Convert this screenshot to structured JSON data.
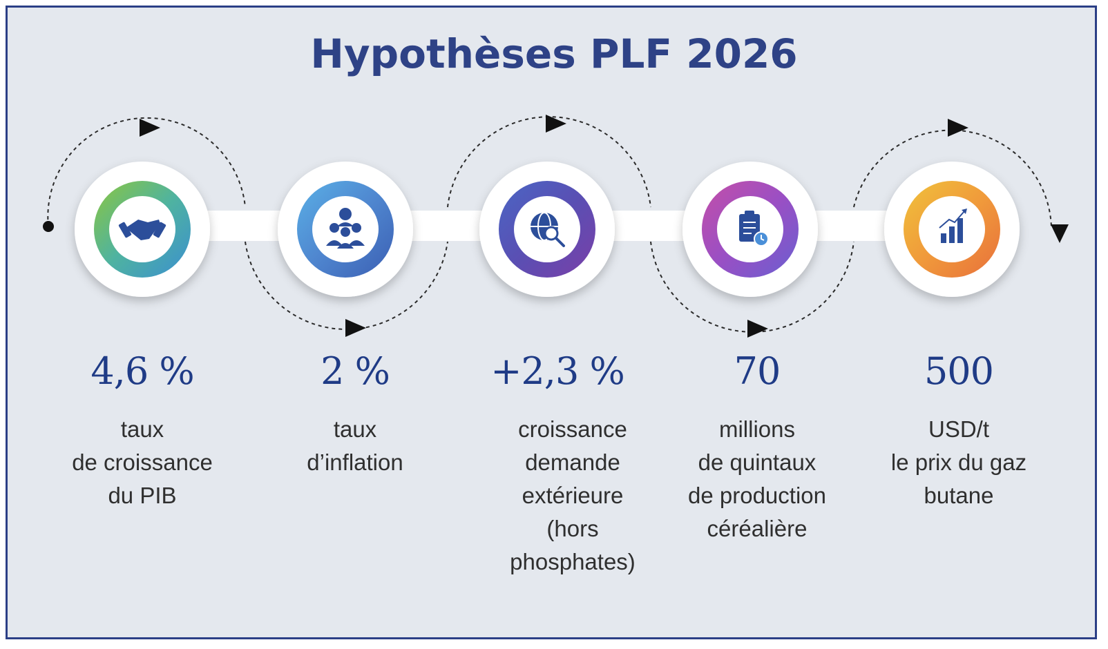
{
  "title": "Hypothèses PLF 2026",
  "colors": {
    "title": "#2e4286",
    "value": "#1f3b86",
    "frame": "#2b3f86",
    "background": "#e4e8ee"
  },
  "items": [
    {
      "icon": "handshake-icon",
      "value": "4,6 %",
      "label_lines": [
        "taux",
        "de croissance",
        "du PIB"
      ],
      "gradient": [
        "#8cc63f",
        "#4fb3a0",
        "#3b8fd0"
      ]
    },
    {
      "icon": "team-meeting-icon",
      "value": "2 %",
      "label_lines": [
        "taux",
        "d’inflation"
      ],
      "gradient": [
        "#5ab0e6",
        "#4f86cf",
        "#3b5fb3"
      ]
    },
    {
      "icon": "globe-search-icon",
      "value": "+2,3 %",
      "label_lines": [
        "croissance",
        "demande",
        "extérieure",
        "(hors",
        "phosphates)"
      ],
      "gradient": [
        "#4a66c4",
        "#5a4fb3",
        "#7a3fa8"
      ]
    },
    {
      "icon": "clipboard-clock-icon",
      "value": "70",
      "label_lines": [
        "millions",
        "de quintaux",
        "de production",
        "céréalière"
      ],
      "gradient": [
        "#c44fa8",
        "#9a4fc4",
        "#6a5fd0"
      ]
    },
    {
      "icon": "growth-chart-icon",
      "value": "500",
      "label_lines": [
        "USD/t",
        "le prix du gaz",
        "butane"
      ],
      "gradient": [
        "#f0c23b",
        "#f09a3b",
        "#e8703b"
      ]
    }
  ]
}
